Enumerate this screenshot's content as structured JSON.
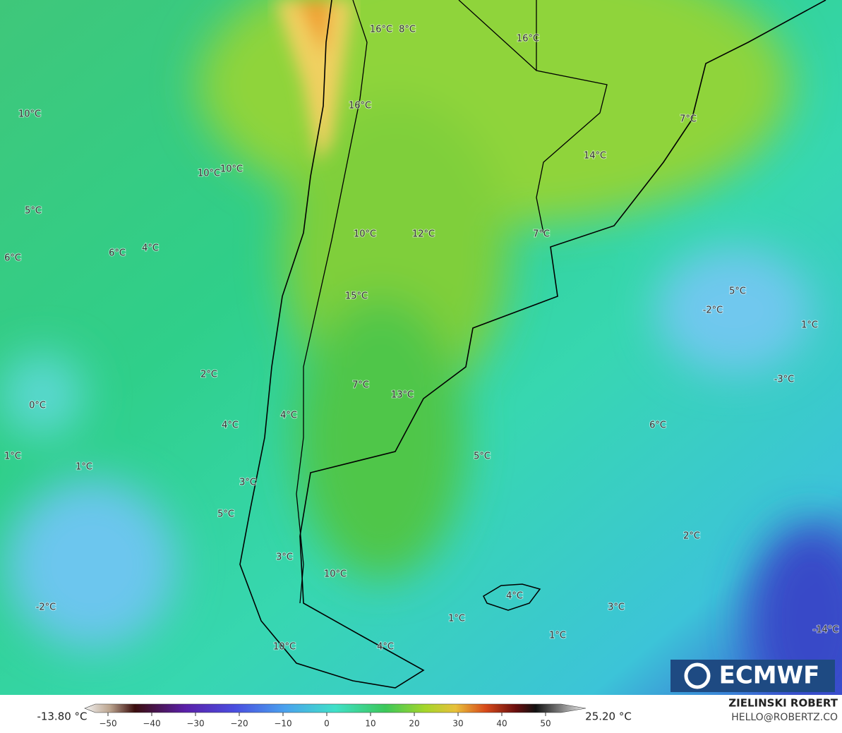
{
  "map_labels": [
    "16°C",
    "8°C",
    "16°C",
    "16°C",
    "10°C",
    "10°C",
    "10°C",
    "5°C",
    "6°C",
    "6°C",
    "4°C",
    "10°C",
    "12°C",
    "7°C",
    "14°C",
    "7°C",
    "15°C",
    "5°C",
    "-2°C",
    "1°C",
    "-3°C",
    "2°C",
    "7°C",
    "13°C",
    "0°C",
    "4°C",
    "4°C",
    "6°C",
    "1°C",
    "1°C",
    "5°C",
    "3°C",
    "5°C",
    "2°C",
    "3°C",
    "10°C",
    "4°C",
    "-2°C",
    "3°C",
    "1°C",
    "1°C",
    "-14°C",
    "10°C",
    "4°C"
  ],
  "colorbar": {
    "min_label": "-13.80 °C",
    "max_label": "25.20 °C",
    "ticks": [
      "−50",
      "−40",
      "−30",
      "−20",
      "−10",
      "0",
      "10",
      "20",
      "30",
      "40",
      "50"
    ]
  },
  "logo": "ECMWF",
  "credits": {
    "author": "ZIELINSKI ROBERT",
    "contact": "HELLO@ROBERTZ.CO"
  }
}
